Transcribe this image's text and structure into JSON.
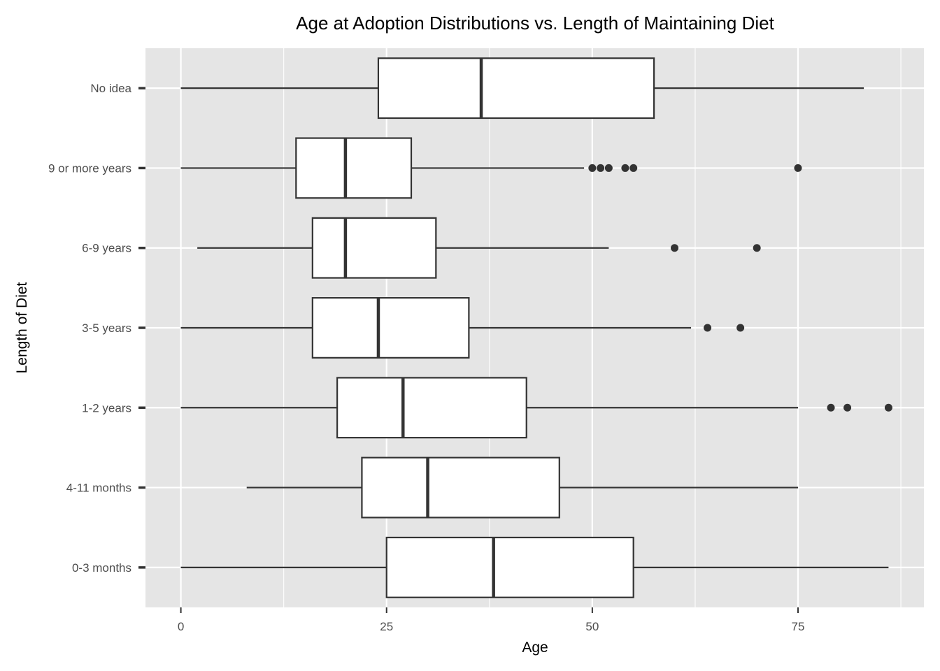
{
  "chart_data": {
    "type": "boxplot",
    "orientation": "horizontal",
    "title": "Age at Adoption Distributions vs. Length of Maintaining Diet",
    "xlabel": "Age",
    "ylabel": "Length of Diet",
    "xlim": [
      -4.3,
      90.3
    ],
    "x_ticks": [
      0,
      25,
      50,
      75
    ],
    "grid": true,
    "categories": [
      "0-3 months",
      "4-11 months",
      "1-2 years",
      "3-5 years",
      "6-9 years",
      "9 or more years",
      "No idea"
    ],
    "boxes": [
      {
        "category": "0-3 months",
        "whisker_low": 0,
        "q1": 25,
        "median": 38,
        "q3": 55,
        "whisker_high": 86,
        "outliers": []
      },
      {
        "category": "4-11 months",
        "whisker_low": 8,
        "q1": 22,
        "median": 30,
        "q3": 46,
        "whisker_high": 75,
        "outliers": []
      },
      {
        "category": "1-2 years",
        "whisker_low": 0,
        "q1": 19,
        "median": 27,
        "q3": 42,
        "whisker_high": 75,
        "outliers": [
          79,
          81,
          86
        ]
      },
      {
        "category": "3-5 years",
        "whisker_low": 0,
        "q1": 16,
        "median": 24,
        "q3": 35,
        "whisker_high": 62,
        "outliers": [
          64,
          68
        ]
      },
      {
        "category": "6-9 years",
        "whisker_low": 2,
        "q1": 16,
        "median": 20,
        "q3": 31,
        "whisker_high": 52,
        "outliers": [
          60,
          70
        ]
      },
      {
        "category": "9 or more years",
        "whisker_low": 0,
        "q1": 14,
        "median": 20,
        "q3": 28,
        "whisker_high": 49,
        "outliers": [
          50,
          51,
          52,
          54,
          55,
          75
        ]
      },
      {
        "category": "No idea",
        "whisker_low": 0,
        "q1": 24,
        "median": 36.5,
        "q3": 57.5,
        "whisker_high": 83,
        "outliers": []
      }
    ],
    "colors": {
      "panel_background": "#e5e5e5",
      "grid": "#ffffff",
      "box_fill": "#ffffff",
      "box_stroke": "#333333",
      "outlier": "#333333"
    }
  }
}
